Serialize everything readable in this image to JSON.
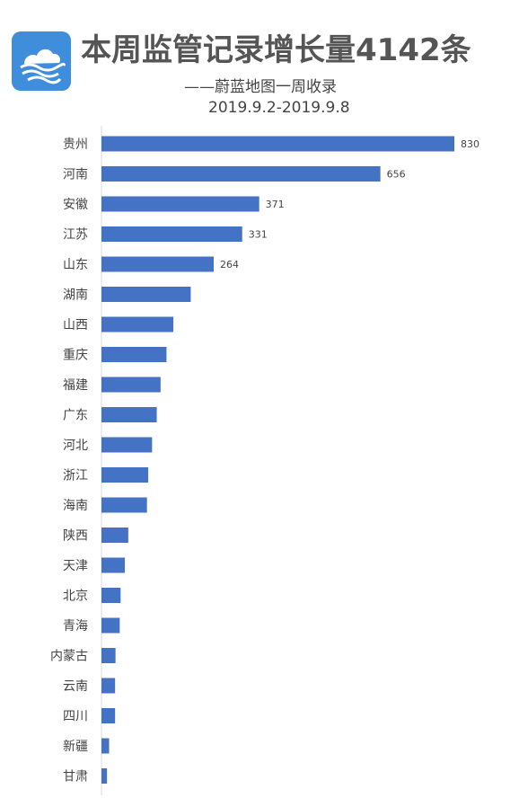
{
  "header": {
    "title": "本周监管记录增长量4142条",
    "subtitle": "——蔚蓝地图一周收录",
    "date_range": "2019.9.2-2019.9.8",
    "logo_icon": "cloud-logo-icon"
  },
  "colors": {
    "bar": "#4472C4",
    "axis": "#D9D9D9",
    "logo_bg": "#3F8EDB",
    "text": "#444444"
  },
  "chart_data": {
    "type": "bar",
    "orientation": "horizontal",
    "categories": [
      "贵州",
      "河南",
      "安徽",
      "江苏",
      "山东",
      "湖南",
      "山西",
      "重庆",
      "福建",
      "广东",
      "河北",
      "浙江",
      "海南",
      "陕西",
      "天津",
      "北京",
      "青海",
      "内蒙古",
      "云南",
      "四川",
      "新疆",
      "甘肃"
    ],
    "values": [
      830,
      656,
      371,
      331,
      264,
      210,
      169,
      153,
      139,
      130,
      119,
      110,
      107,
      63,
      55,
      45,
      43,
      33,
      32,
      32,
      18,
      13
    ],
    "data_labels": [
      "830",
      "656",
      "371",
      "331",
      "264",
      "",
      "",
      "",
      "",
      "",
      "",
      "",
      "",
      "",
      "",
      "",
      "",
      "",
      "",
      "",
      "",
      ""
    ],
    "xlim": [
      0,
      830
    ],
    "grid": false,
    "legend": "none"
  }
}
